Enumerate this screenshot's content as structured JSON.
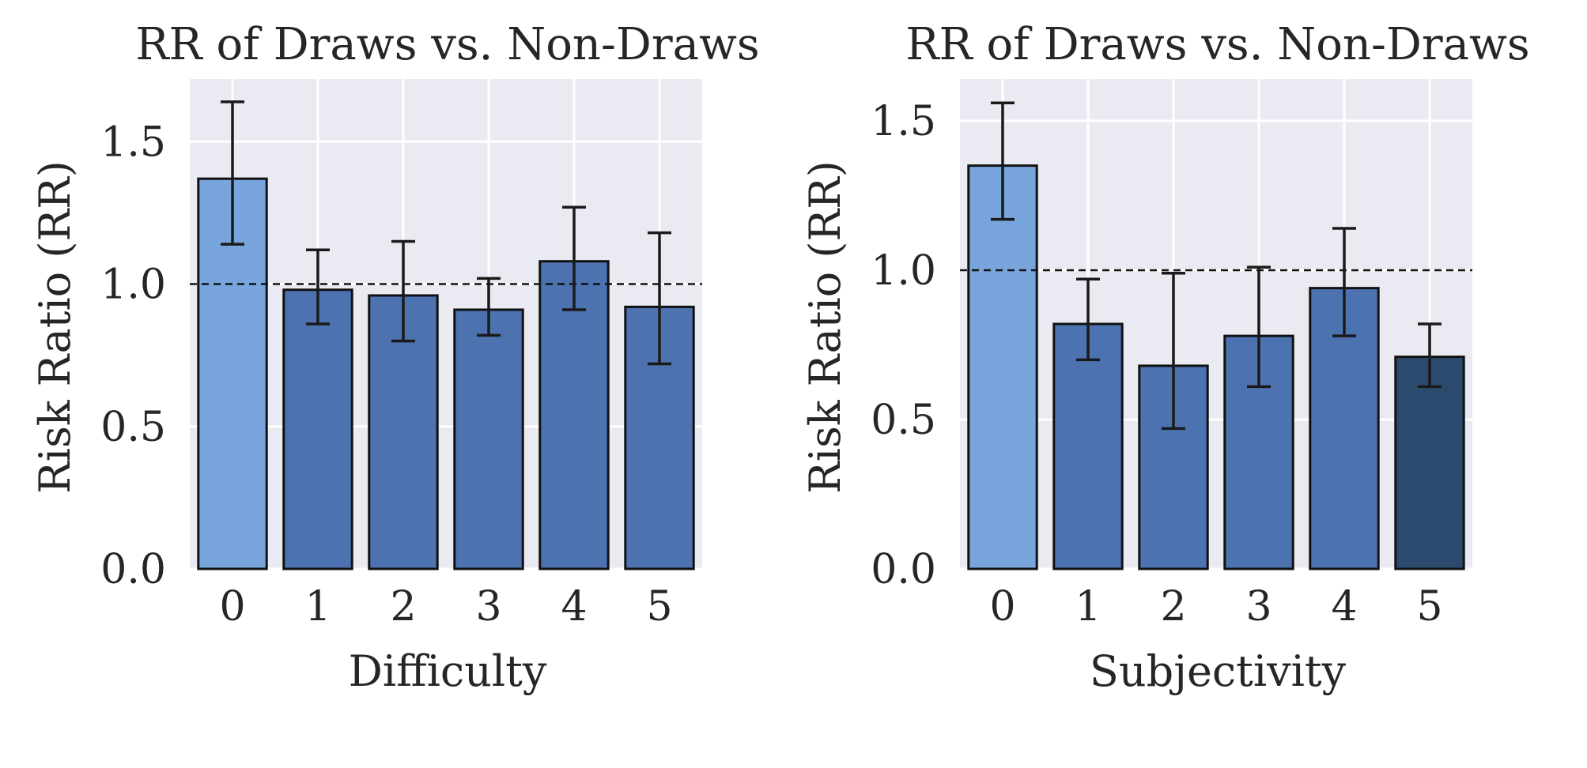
{
  "chart_data": [
    {
      "type": "bar",
      "title": "RR of Draws vs. Non-Draws",
      "xlabel": "Difficulty",
      "ylabel": "Risk Ratio (RR)",
      "categories": [
        "0",
        "1",
        "2",
        "3",
        "4",
        "5"
      ],
      "values": [
        1.37,
        0.98,
        0.96,
        0.91,
        1.08,
        0.92
      ],
      "error_low": [
        1.14,
        0.86,
        0.8,
        0.82,
        0.91,
        0.72
      ],
      "error_high": [
        1.64,
        1.12,
        1.15,
        1.02,
        1.27,
        1.18
      ],
      "bar_colors": [
        "#77a5dc",
        "#4c72b0",
        "#4c72b0",
        "#4c72b0",
        "#4c72b0",
        "#4c72b0"
      ],
      "reference_line": 1.0,
      "yticks": [
        0.0,
        0.5,
        1.0,
        1.5
      ],
      "ytick_labels": [
        "0.0",
        "0.5",
        "1.0",
        "1.5"
      ],
      "ylim": [
        0,
        1.72
      ],
      "grid": true,
      "background_color": "#eaeaf2"
    },
    {
      "type": "bar",
      "title": "RR of Draws vs. Non-Draws",
      "xlabel": "Subjectivity",
      "ylabel": "Risk Ratio (RR)",
      "categories": [
        "0",
        "1",
        "2",
        "3",
        "4",
        "5"
      ],
      "values": [
        1.35,
        0.82,
        0.68,
        0.78,
        0.94,
        0.71
      ],
      "error_low": [
        1.17,
        0.7,
        0.47,
        0.61,
        0.78,
        0.61
      ],
      "error_high": [
        1.56,
        0.97,
        0.99,
        1.01,
        1.14,
        0.82
      ],
      "bar_colors": [
        "#77a5dc",
        "#4c72b0",
        "#4c72b0",
        "#4c72b0",
        "#4c72b0",
        "#2b4a6e"
      ],
      "reference_line": 1.0,
      "yticks": [
        0.0,
        0.5,
        1.0,
        1.5
      ],
      "ytick_labels": [
        "0.0",
        "0.5",
        "1.0",
        "1.5"
      ],
      "ylim": [
        0,
        1.64
      ],
      "grid": true,
      "background_color": "#eaeaf2"
    }
  ]
}
